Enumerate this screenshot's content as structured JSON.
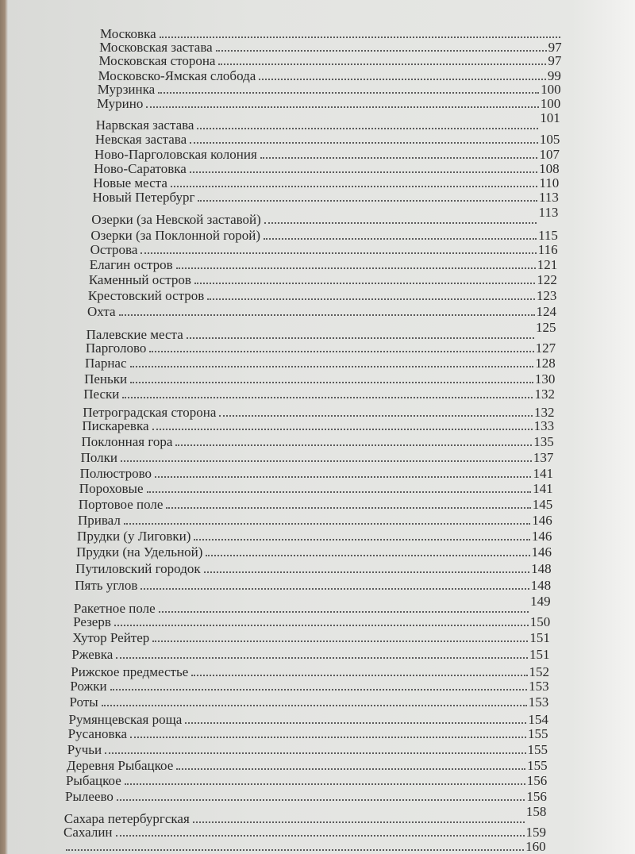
{
  "toc": {
    "entries": [
      {
        "label": "Московка",
        "page": ""
      },
      {
        "label": "Московская застава",
        "page": "97"
      },
      {
        "label": "Московская сторона",
        "page": "97"
      },
      {
        "label": "Московско-Ямская слобода",
        "page": "99"
      },
      {
        "label": "Мурзинка",
        "page": "100"
      },
      {
        "label": "Мурино",
        "page": "100"
      },
      {
        "label": "Нарвская застава",
        "page": "101",
        "raised": true
      },
      {
        "label": "Невская застава",
        "page": "105"
      },
      {
        "label": "Ново-Парголовская колония",
        "page": "107"
      },
      {
        "label": "Ново-Саратовка",
        "page": "108"
      },
      {
        "label": "Новые места",
        "page": "110"
      },
      {
        "label": "Новый Петербург",
        "page": "113"
      },
      {
        "label": "Озерки (за Невской заставой)",
        "page": "113",
        "raised": true
      },
      {
        "label": "Озерки (за Поклонной горой)",
        "page": "115"
      },
      {
        "label": "Острова",
        "page": "116"
      },
      {
        "label": "Елагин остров",
        "page": "121"
      },
      {
        "label": "Каменный остров",
        "page": "122"
      },
      {
        "label": "Крестовский остров",
        "page": "123"
      },
      {
        "label": "Охта",
        "page": "124"
      },
      {
        "label": "Палевские места",
        "page": "125",
        "raised": true
      },
      {
        "label": "Парголово",
        "page": "127"
      },
      {
        "label": "Парнас",
        "page": "128"
      },
      {
        "label": "Пеньки",
        "page": "130"
      },
      {
        "label": "Пески",
        "page": "132"
      },
      {
        "label": "Петроградская сторона",
        "page": "132"
      },
      {
        "label": "Пискаревка",
        "page": "133"
      },
      {
        "label": "Поклонная гора",
        "page": "135"
      },
      {
        "label": "Полки",
        "page": "137"
      },
      {
        "label": "Полюстрово",
        "page": "141"
      },
      {
        "label": "Пороховые",
        "page": "141"
      },
      {
        "label": "Портовое поле",
        "page": "145"
      },
      {
        "label": "Привал",
        "page": "146"
      },
      {
        "label": "Прудки (у Лиговки)",
        "page": "146"
      },
      {
        "label": "Прудки (на Удельной)",
        "page": "146"
      },
      {
        "label": "Путиловский городок",
        "page": "148"
      },
      {
        "label": "Пять углов",
        "page": "148"
      },
      {
        "label": "Ракетное поле",
        "page": "149",
        "raised": true
      },
      {
        "label": "Резерв",
        "page": "150"
      },
      {
        "label": "Хутор Рейтер",
        "page": "151"
      },
      {
        "label": "Ржевка",
        "page": "151"
      },
      {
        "label": "Рижское предместье",
        "page": "152"
      },
      {
        "label": "Рожки",
        "page": "153"
      },
      {
        "label": "Роты",
        "page": "153"
      },
      {
        "label": "Румянцевская роща",
        "page": "154"
      },
      {
        "label": "Русановка",
        "page": "155"
      },
      {
        "label": "Ручьи",
        "page": "155"
      },
      {
        "label": "Деревня Рыбацкое",
        "page": "155"
      },
      {
        "label": "Рыбацкое",
        "page": "156"
      },
      {
        "label": "Рылеево",
        "page": "156"
      },
      {
        "label": "Сахара петербургская",
        "page": "158",
        "raised": true
      },
      {
        "label": "Сахалин",
        "page": "159"
      },
      {
        "label": "",
        "page": "160"
      }
    ]
  }
}
